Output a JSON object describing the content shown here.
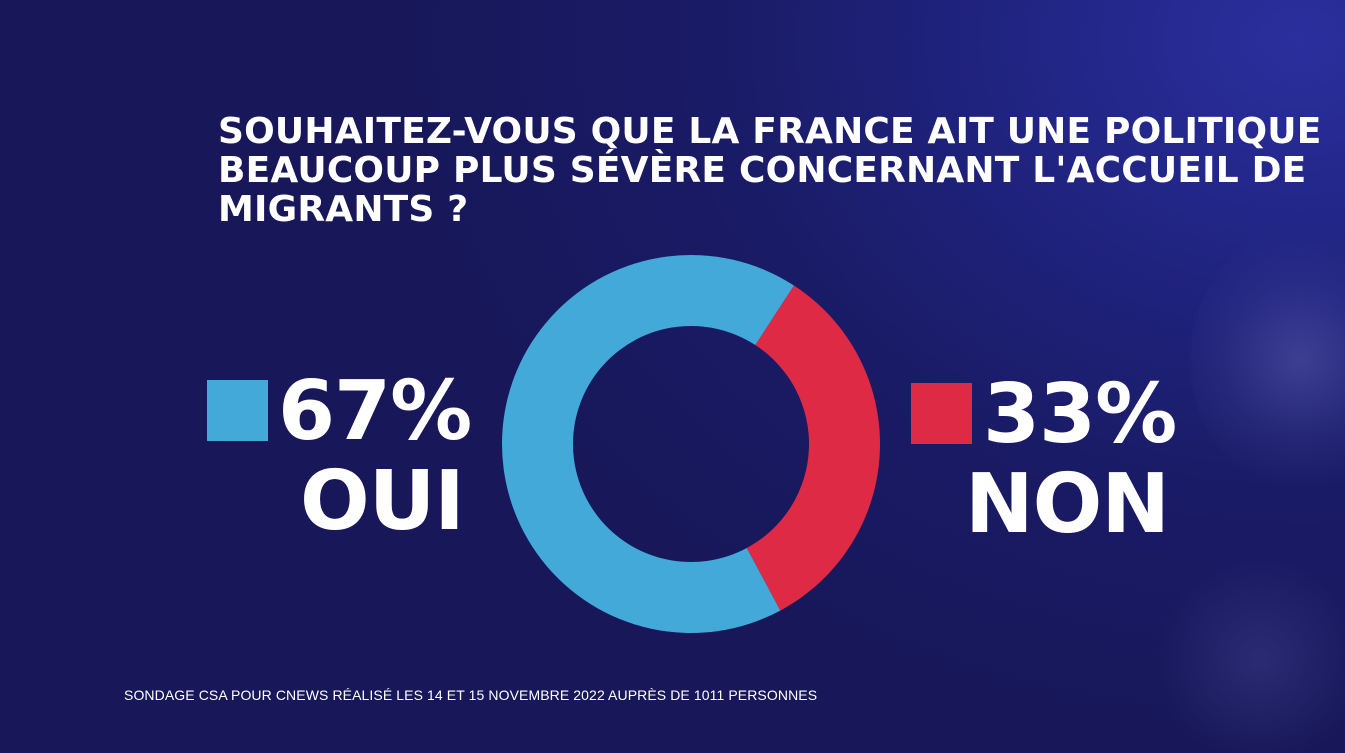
{
  "question": "SOUHAITEZ-VOUS QUE LA FRANCE AIT UNE POLITIQUE BEAUCOUP PLUS SÉVÈRE CONCERNANT L'ACCUEIL DE MIGRANTS ?",
  "source": "SONDAGE CSA POUR CNEWS RÉALISÉ LES 14 ET 15 NOVEMBRE 2022 AUPRÈS DE 1011 PERSONNES",
  "chart_data": {
    "type": "pie",
    "title": "SOUHAITEZ-VOUS QUE LA FRANCE AIT UNE POLITIQUE BEAUCOUP PLUS SÉVÈRE CONCERNANT L'ACCUEIL DE MIGRANTS ?",
    "style": "donut",
    "legend": "left-and-right",
    "slices": [
      {
        "label": "OUI",
        "value": 67,
        "value_label": "67%",
        "color": "#42a9d8"
      },
      {
        "label": "NON",
        "value": 33,
        "value_label": "33%",
        "color": "#de2a45"
      }
    ]
  }
}
